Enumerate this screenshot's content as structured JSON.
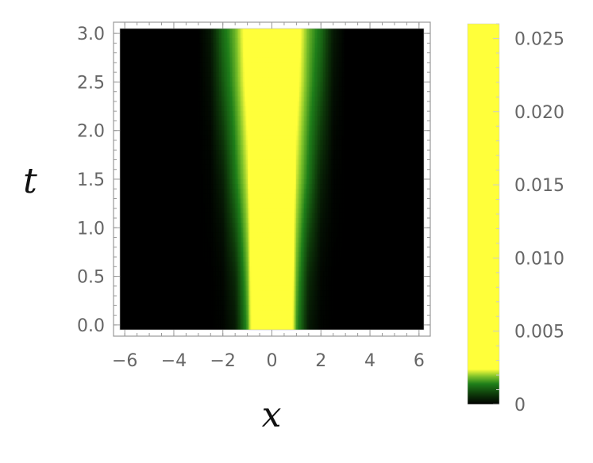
{
  "chart_data": {
    "type": "heatmap",
    "title": "",
    "xlabel": "x",
    "ylabel": "t",
    "xlim": [
      -6.2,
      6.2
    ],
    "ylim": [
      -0.05,
      3.05
    ],
    "x_ticks": [
      -6,
      -4,
      -2,
      0,
      2,
      4,
      6
    ],
    "x_tick_labels": [
      "−6",
      "−4",
      "−2",
      "0",
      "2",
      "4",
      "6"
    ],
    "y_ticks": [
      0.0,
      0.5,
      1.0,
      1.5,
      2.0,
      2.5,
      3.0
    ],
    "y_tick_labels": [
      "0.0",
      "0.5",
      "1.0",
      "1.5",
      "2.0",
      "2.5",
      "3.0"
    ],
    "colorbar": {
      "min": 0,
      "max": 0.026,
      "ticks": [
        0,
        0.005,
        0.01,
        0.015,
        0.02,
        0.025
      ],
      "tick_labels": [
        "0",
        "0.005",
        "0.010",
        "0.015",
        "0.020",
        "0.025"
      ]
    },
    "colormap": [
      {
        "v": 0.0,
        "color": "#000000"
      },
      {
        "v": 0.0007,
        "color": "#0e3a0a"
      },
      {
        "v": 0.0014,
        "color": "#1f7f1a"
      },
      {
        "v": 0.0019,
        "color": "#7dc12a"
      },
      {
        "v": 0.0024,
        "color": "#ffff3a"
      },
      {
        "v": 0.026,
        "color": "#ffff3a"
      }
    ],
    "field": {
      "description_of_values": "intensity on x-t grid",
      "x_samples": [
        -6,
        -5,
        -4,
        -3,
        -2.5,
        -2,
        -1.5,
        -1,
        -0.75,
        -0.5,
        -0.25,
        0,
        0.25,
        0.5,
        0.75,
        1,
        1.5,
        2,
        2.5,
        3,
        4,
        5,
        6
      ],
      "t_samples": [
        0.0,
        0.5,
        1.0,
        1.5,
        2.0,
        2.5,
        3.0
      ],
      "values": [
        [
          0,
          0,
          0,
          0,
          0,
          5e-05,
          0.0003,
          0.0016,
          0.003,
          0.008,
          0.018,
          0.025,
          0.018,
          0.008,
          0.003,
          0.0016,
          0.0003,
          5e-05,
          0,
          0,
          0,
          0,
          0
        ],
        [
          0,
          0,
          0,
          0,
          0,
          8e-05,
          0.0005,
          0.0018,
          0.003,
          0.008,
          0.018,
          0.025,
          0.018,
          0.008,
          0.003,
          0.0018,
          0.0005,
          8e-05,
          0,
          0,
          0,
          0,
          0
        ],
        [
          0,
          0,
          0,
          0,
          3e-05,
          0.0002,
          0.0009,
          0.002,
          0.003,
          0.007,
          0.017,
          0.025,
          0.017,
          0.007,
          0.003,
          0.002,
          0.0009,
          0.0002,
          3e-05,
          0,
          0,
          0,
          0
        ],
        [
          0,
          0,
          0,
          0,
          5e-05,
          0.0004,
          0.0013,
          0.0022,
          0.0032,
          0.007,
          0.017,
          0.025,
          0.017,
          0.007,
          0.0032,
          0.0022,
          0.0013,
          0.0004,
          5e-05,
          0,
          0,
          0,
          0
        ],
        [
          0,
          0,
          0,
          0,
          0.0001,
          0.0007,
          0.0015,
          0.0024,
          0.0034,
          0.007,
          0.017,
          0.025,
          0.017,
          0.007,
          0.0034,
          0.0024,
          0.0015,
          0.0007,
          0.0001,
          0,
          0,
          0,
          0
        ],
        [
          0,
          0,
          0,
          0,
          0.0002,
          0.001,
          0.0017,
          0.0026,
          0.0036,
          0.007,
          0.017,
          0.025,
          0.017,
          0.007,
          0.0036,
          0.0026,
          0.0017,
          0.001,
          0.0002,
          0,
          0,
          0,
          0
        ],
        [
          0,
          0,
          0,
          0,
          0.0003,
          0.0012,
          0.0018,
          0.0027,
          0.0038,
          0.007,
          0.017,
          0.025,
          0.017,
          0.007,
          0.0038,
          0.0027,
          0.0018,
          0.0012,
          0.0003,
          0,
          0,
          0,
          0
        ]
      ]
    }
  }
}
